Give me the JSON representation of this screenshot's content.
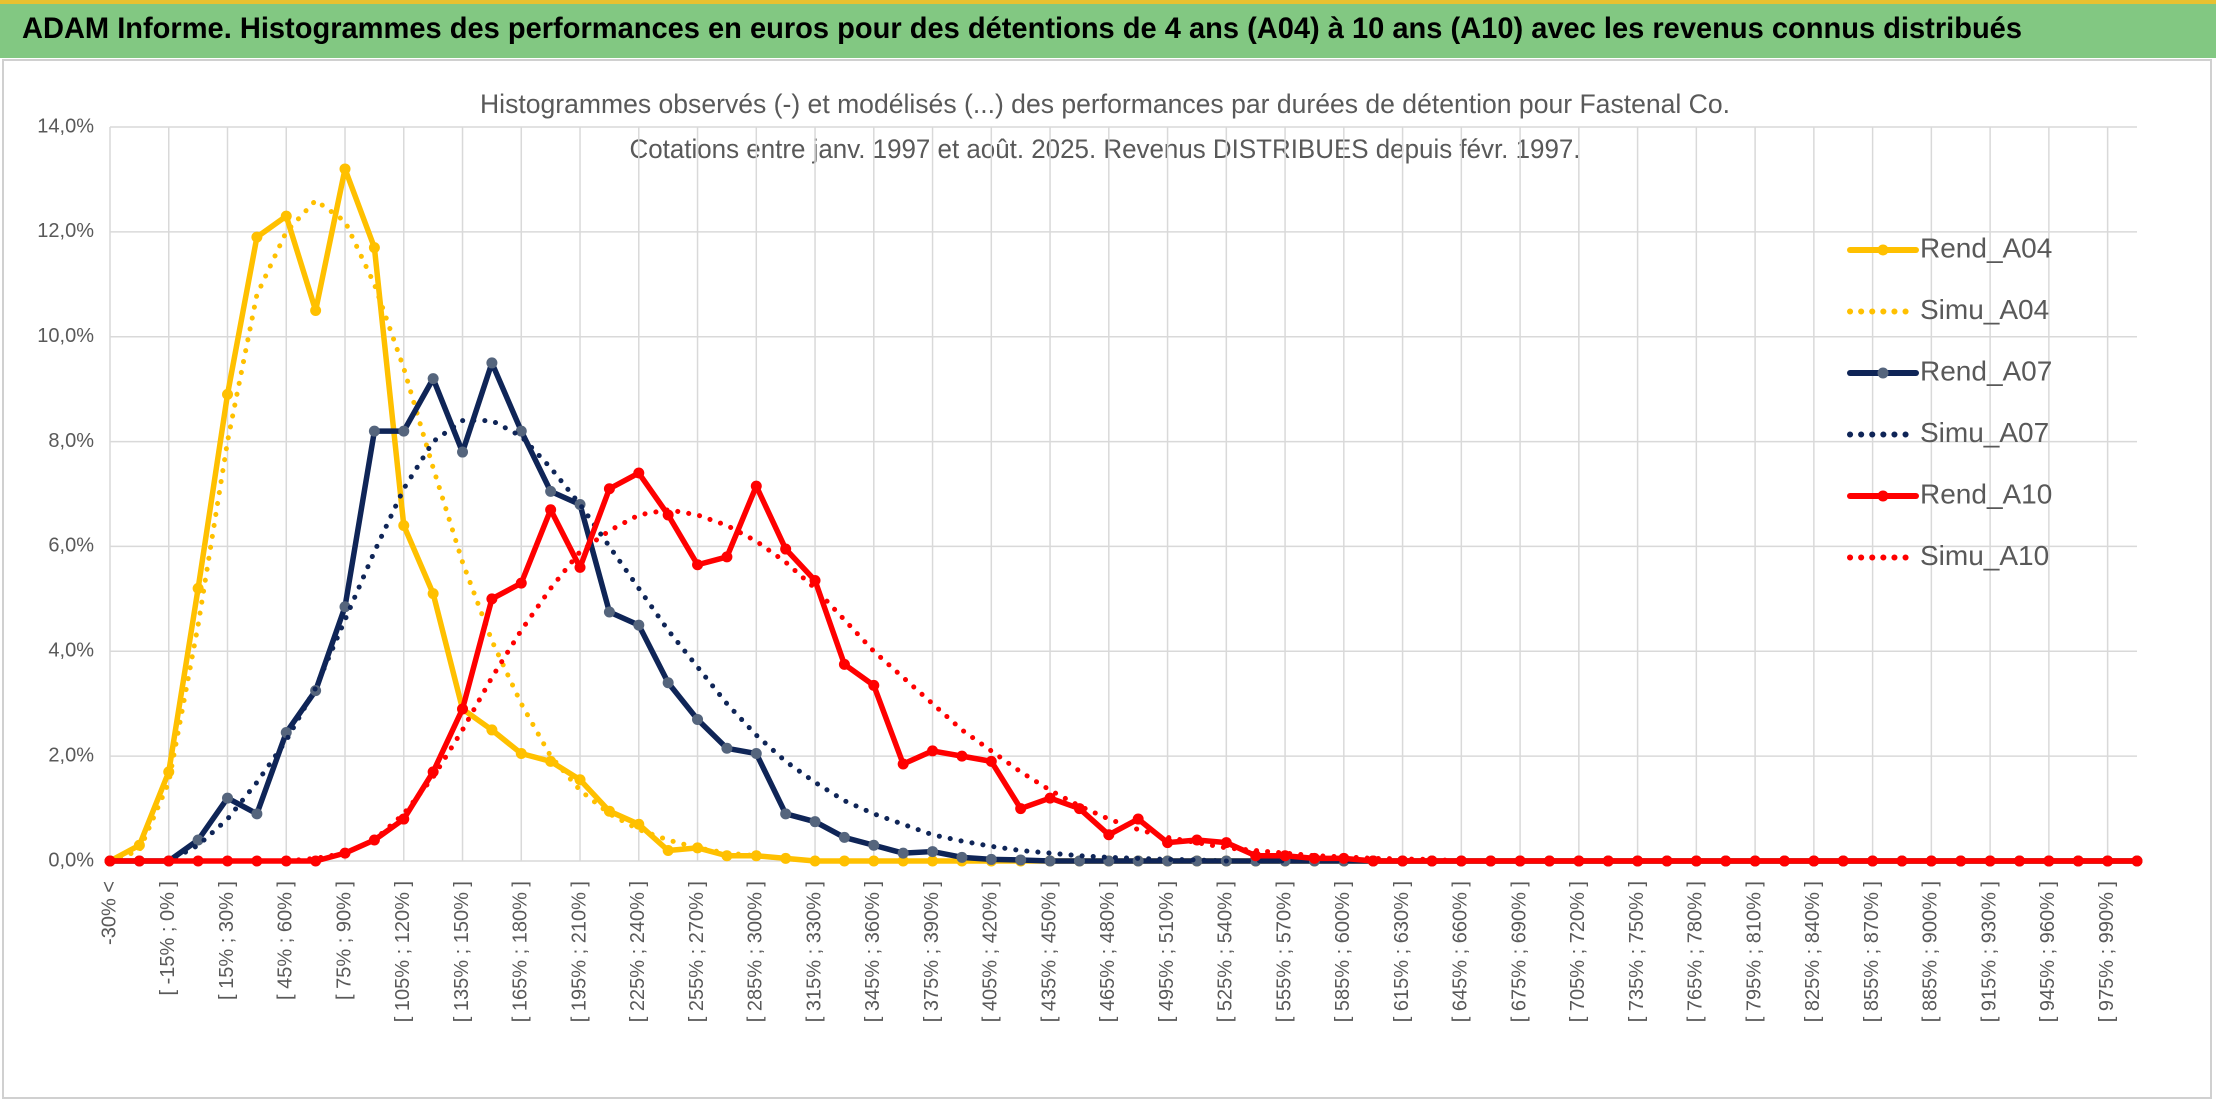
{
  "header": {
    "title": "ADAM Informe. Histogrammes des performances en euros pour des détentions de 4 ans (A04) à 10 ans (A10) avec les revenus connus distribués"
  },
  "chart_data": {
    "type": "line",
    "title": "Histogrammes observés (-) et modélisés (...) des performances par durées de détention pour Fastenal Co.",
    "subtitle": "Cotations entre janv. 1997 et août. 2025. Revenus DISTRIBUES depuis févr. 1997.",
    "categories": [
      "-30% <",
      null,
      "[ -15% ; 0% ]",
      null,
      "[ 15% ; 30% ]",
      null,
      "[ 45% ; 60% ]",
      null,
      "[ 75% ; 90% ]",
      null,
      "[ 105% ; 120% ]",
      null,
      "[ 135% ; 150% ]",
      null,
      "[ 165% ; 180% ]",
      null,
      "[ 195% ; 210% ]",
      null,
      "[ 225% ; 240% ]",
      null,
      "[ 255% ; 270% ]",
      null,
      "[ 285% ; 300% ]",
      null,
      "[ 315% ; 330% ]",
      null,
      "[ 345% ; 360% ]",
      null,
      "[ 375% ; 390% ]",
      null,
      "[ 405% ; 420% ]",
      null,
      "[ 435% ; 450% ]",
      null,
      "[ 465% ; 480% ]",
      null,
      "[ 495% ; 510% ]",
      null,
      "[ 525% ; 540% ]",
      null,
      "[ 555% ; 570% ]",
      null,
      "[ 585% ; 600% ]",
      null,
      "[ 615% ; 630% ]",
      null,
      "[ 645% ; 660% ]",
      null,
      "[ 675% ; 690% ]",
      null,
      "[ 705% ; 720% ]",
      null,
      "[ 735% ; 750% ]",
      null,
      "[ 765% ; 780% ]",
      null,
      "[ 795% ; 810% ]",
      null,
      "[ 825% ; 840% ]",
      null,
      "[ 855% ; 870% ]",
      null,
      "[ 885% ; 900% ]",
      null,
      "[ 915% ; 930% ]",
      null,
      "[ 945% ; 960% ]",
      null,
      "[ 975% ; 990% ]",
      null
    ],
    "series": [
      {
        "name": "Rend_A04",
        "color": "#ffc000",
        "line_style": "solid",
        "marker_color": "#ffc000",
        "values": [
          0,
          0.3,
          1.7,
          5.2,
          8.9,
          11.9,
          12.3,
          10.5,
          13.2,
          11.7,
          6.4,
          5.1,
          2.9,
          2.5,
          2.05,
          1.9,
          1.55,
          0.95,
          0.7,
          0.2,
          0.25,
          0.1,
          0.1,
          0.05,
          0,
          0,
          0,
          0,
          0,
          0,
          0,
          0,
          0,
          0,
          0,
          0,
          0,
          0,
          0,
          0,
          0,
          0,
          0,
          0,
          0,
          0,
          0,
          0,
          0,
          0,
          0,
          0,
          0,
          0,
          0,
          0,
          0,
          0,
          0,
          0,
          0,
          0,
          0,
          0,
          0,
          0,
          0,
          0,
          0,
          0
        ]
      },
      {
        "name": "Simu_A04",
        "color": "#ffc000",
        "line_style": "dotted",
        "values": [
          0,
          0.2,
          1.5,
          4.5,
          8.0,
          10.8,
          12.0,
          12.6,
          12.2,
          11.0,
          9.4,
          7.5,
          5.7,
          4.2,
          3.0,
          2.0,
          1.35,
          0.9,
          0.6,
          0.4,
          0.25,
          0.15,
          0.1,
          0.05,
          0,
          0,
          0,
          0,
          0,
          0,
          0,
          0,
          0,
          0,
          0,
          0,
          0,
          0,
          0,
          0,
          0,
          0,
          0,
          0,
          0,
          0,
          0,
          0,
          0,
          0,
          0,
          0,
          0,
          0,
          0,
          0,
          0,
          0,
          0,
          0,
          0,
          0,
          0,
          0,
          0,
          0,
          0,
          0,
          0,
          0
        ]
      },
      {
        "name": "Rend_A07",
        "color": "#0f2557",
        "line_style": "solid",
        "marker_color": "#55657d",
        "values": [
          0,
          0,
          0,
          0.4,
          1.2,
          0.9,
          2.45,
          3.25,
          4.85,
          8.2,
          8.2,
          9.2,
          7.8,
          9.5,
          8.2,
          7.05,
          6.8,
          4.75,
          4.5,
          3.4,
          2.7,
          2.15,
          2.05,
          0.9,
          0.75,
          0.45,
          0.3,
          0.15,
          0.18,
          0.07,
          0.03,
          0.02,
          0,
          0,
          0,
          0,
          0,
          0,
          0,
          0,
          0,
          0,
          0,
          0,
          0,
          0,
          0,
          0,
          0,
          0,
          0,
          0,
          0,
          0,
          0,
          0,
          0,
          0,
          0,
          0,
          0,
          0,
          0,
          0,
          0,
          0,
          0,
          0,
          0,
          0
        ]
      },
      {
        "name": "Simu_A07",
        "color": "#0f2557",
        "line_style": "dotted",
        "values": [
          0,
          0,
          0,
          0.3,
          0.8,
          1.5,
          2.3,
          3.3,
          4.6,
          5.9,
          7.1,
          8.0,
          8.4,
          8.4,
          8.1,
          7.5,
          6.8,
          6.0,
          5.2,
          4.4,
          3.7,
          3.0,
          2.4,
          1.9,
          1.5,
          1.15,
          0.9,
          0.7,
          0.5,
          0.38,
          0.28,
          0.2,
          0.15,
          0.1,
          0.07,
          0.05,
          0.03,
          0.02,
          0,
          0,
          0,
          0,
          0,
          0,
          0,
          0,
          0,
          0,
          0,
          0,
          0,
          0,
          0,
          0,
          0,
          0,
          0,
          0,
          0,
          0,
          0,
          0,
          0,
          0,
          0,
          0,
          0,
          0,
          0,
          0
        ]
      },
      {
        "name": "Rend_A10",
        "color": "#ff0000",
        "line_style": "solid",
        "marker_color": "#ff0000",
        "values": [
          0,
          0,
          0,
          0,
          0,
          0,
          0,
          0,
          0.15,
          0.4,
          0.8,
          1.7,
          2.9,
          5.0,
          5.3,
          6.7,
          5.6,
          7.1,
          7.4,
          6.6,
          5.65,
          5.8,
          7.15,
          5.95,
          5.35,
          3.75,
          3.35,
          1.85,
          2.1,
          2.0,
          1.9,
          1.0,
          1.2,
          1.0,
          0.5,
          0.8,
          0.35,
          0.4,
          0.35,
          0.1,
          0.1,
          0.05,
          0.05,
          0,
          0,
          0,
          0,
          0,
          0,
          0,
          0,
          0,
          0,
          0,
          0,
          0,
          0,
          0,
          0,
          0,
          0,
          0,
          0,
          0,
          0,
          0,
          0,
          0,
          0,
          0
        ]
      },
      {
        "name": "Simu_A10",
        "color": "#ff0000",
        "line_style": "dotted",
        "values": [
          0,
          0,
          0,
          0,
          0,
          0,
          0,
          0.05,
          0.15,
          0.4,
          0.9,
          1.6,
          2.5,
          3.5,
          4.4,
          5.2,
          5.9,
          6.3,
          6.6,
          6.7,
          6.6,
          6.4,
          6.1,
          5.7,
          5.2,
          4.6,
          4.0,
          3.5,
          3.0,
          2.5,
          2.1,
          1.7,
          1.35,
          1.05,
          0.8,
          0.6,
          0.45,
          0.35,
          0.25,
          0.2,
          0.15,
          0.1,
          0.08,
          0.05,
          0.04,
          0.03,
          0,
          0,
          0,
          0,
          0,
          0,
          0,
          0,
          0,
          0,
          0,
          0,
          0,
          0,
          0,
          0,
          0,
          0,
          0,
          0,
          0,
          0,
          0,
          0
        ]
      }
    ],
    "ylim": [
      0,
      14
    ],
    "yticks": [
      {
        "value": 0,
        "label": "0,0%"
      },
      {
        "value": 2,
        "label": "2,0%"
      },
      {
        "value": 4,
        "label": "4,0%"
      },
      {
        "value": 6,
        "label": "6,0%"
      },
      {
        "value": 8,
        "label": "8,0%"
      },
      {
        "value": 10,
        "label": "10,0%"
      },
      {
        "value": 12,
        "label": "12,0%"
      },
      {
        "value": 14,
        "label": "14,0%"
      }
    ],
    "grid": true,
    "legend": "right"
  }
}
